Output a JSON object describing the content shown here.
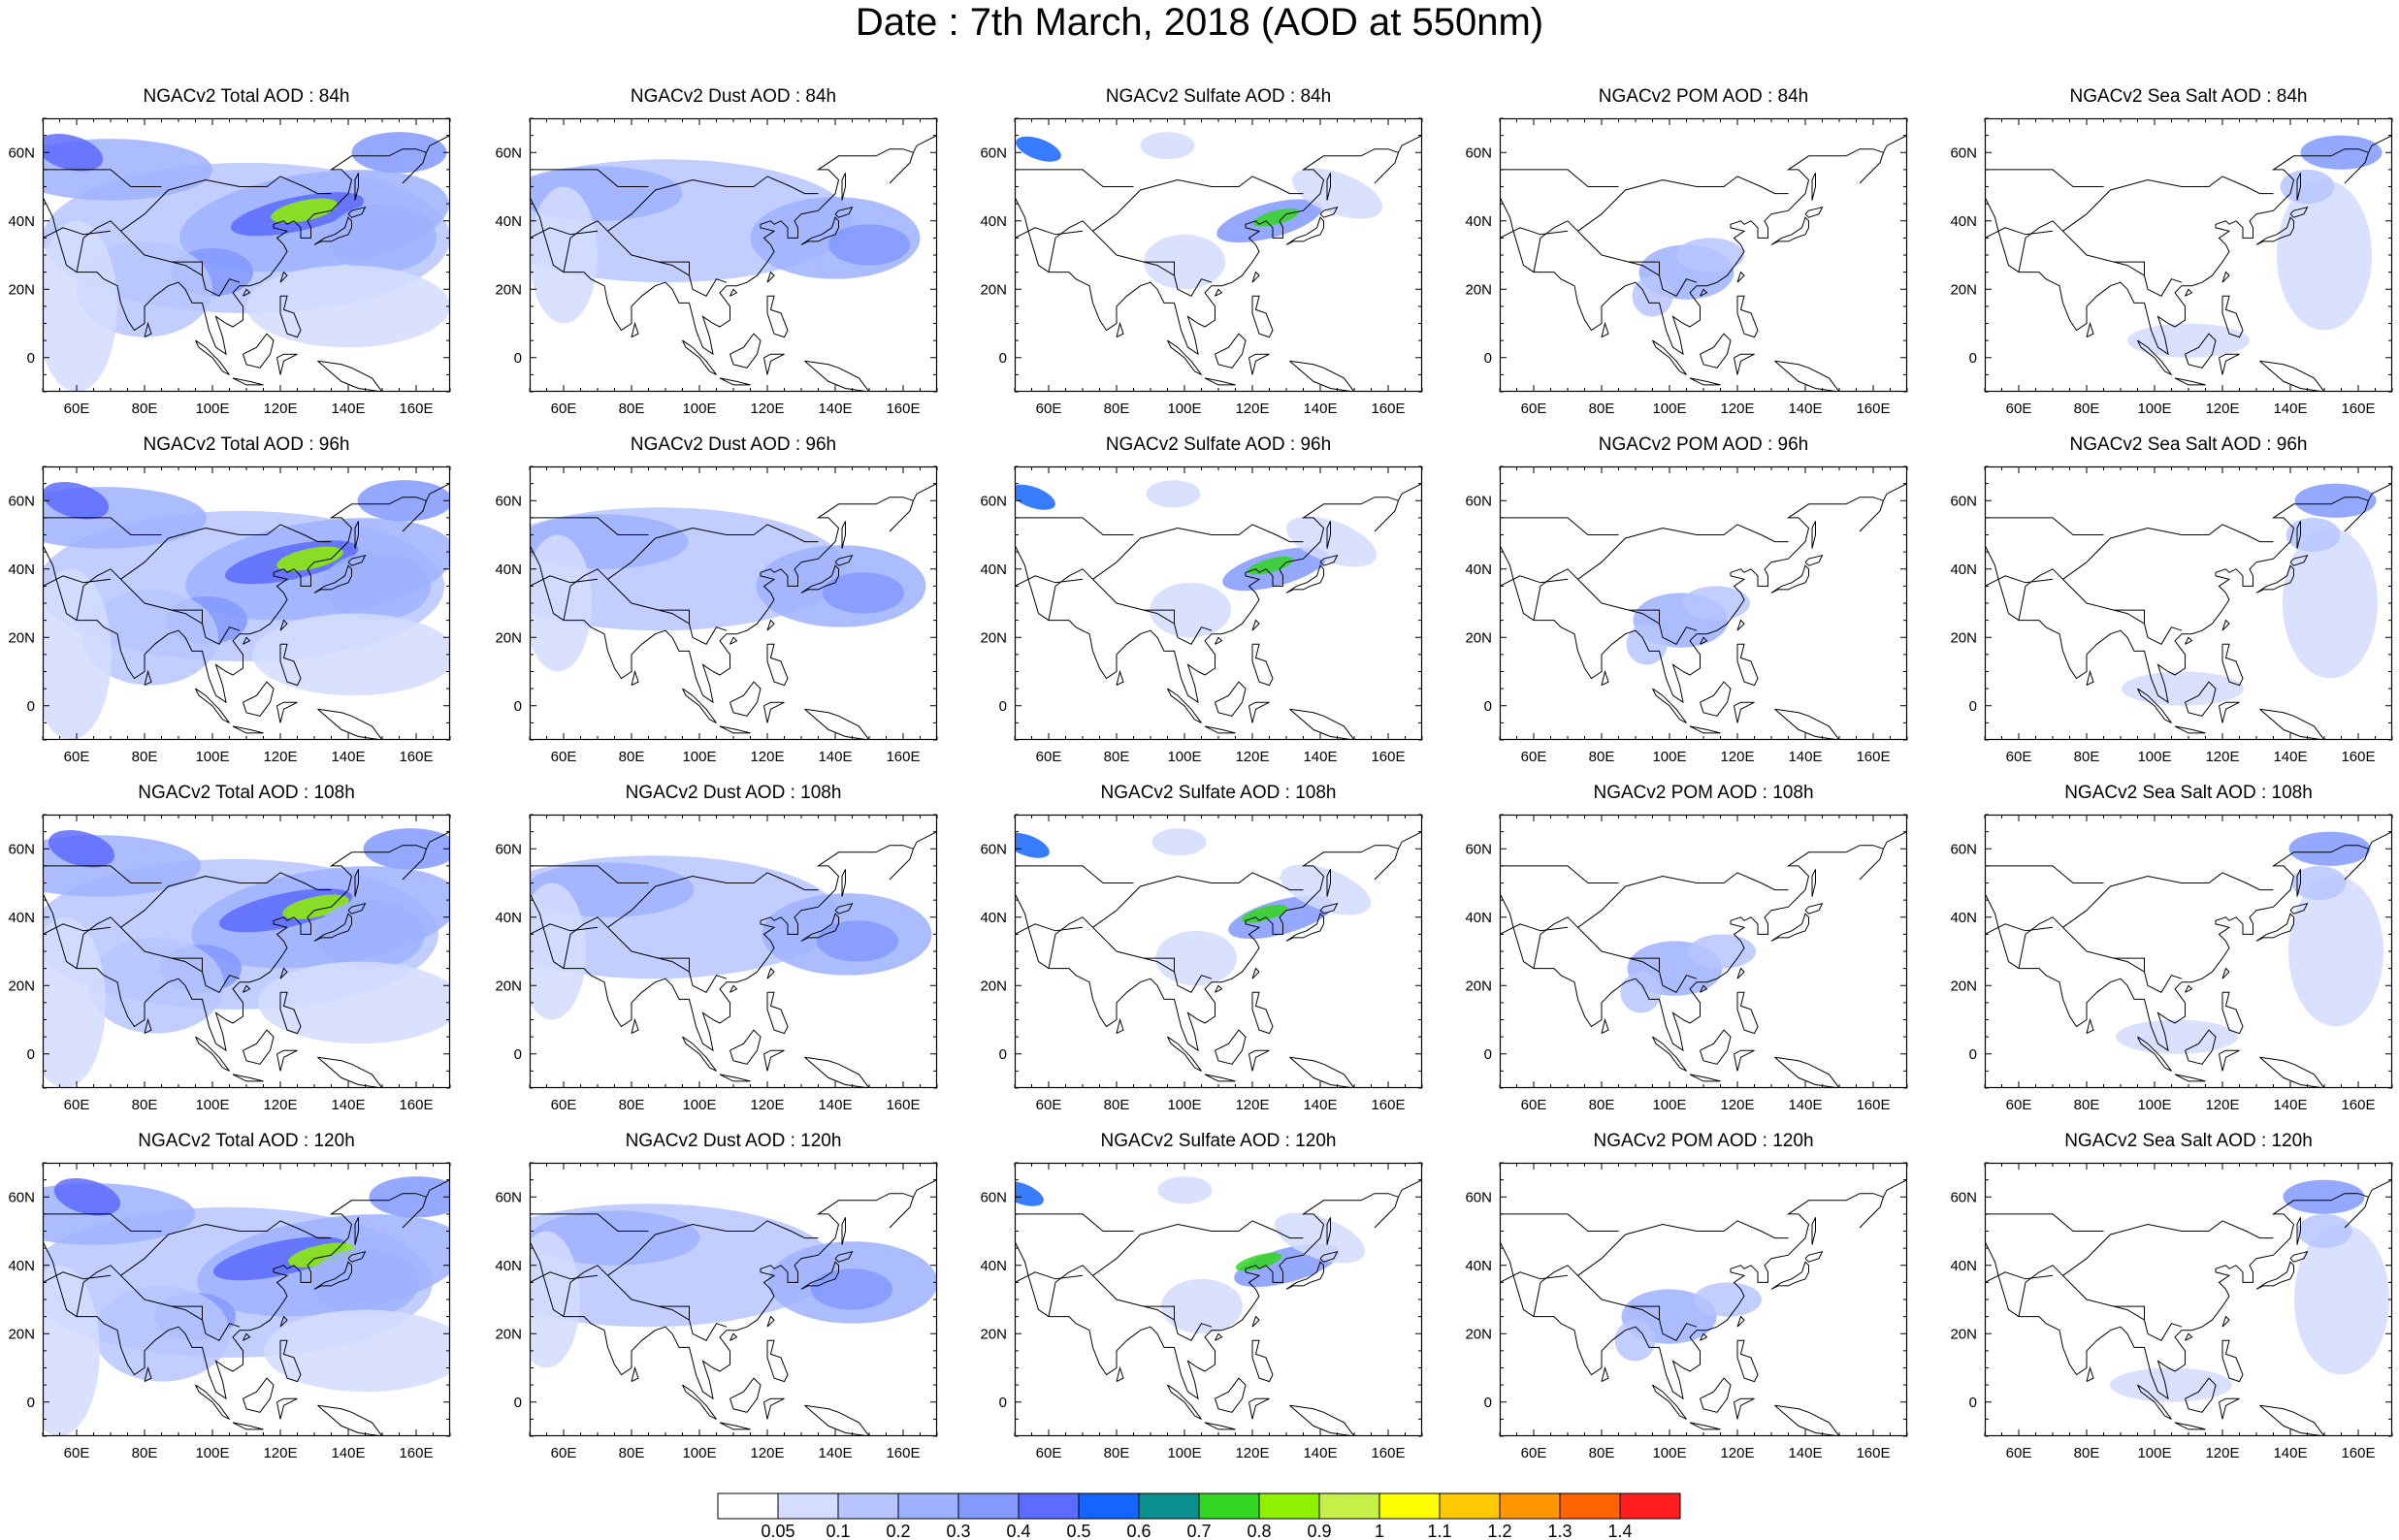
{
  "title": "Date : 7th March, 2018 (AOD at 550nm)",
  "rows": [
    {
      "lead": "84h",
      "panels": [
        {
          "title": "NGACv2 Total AOD : 84h",
          "species": "total"
        },
        {
          "title": "NGACv2 Dust AOD : 84h",
          "species": "dust"
        },
        {
          "title": "NGACv2 Sulfate AOD : 84h",
          "species": "sulfate"
        },
        {
          "title": "NGACv2 POM AOD : 84h",
          "species": "pom"
        },
        {
          "title": "NGACv2 Sea Salt AOD : 84h",
          "species": "seasalt"
        }
      ]
    },
    {
      "lead": "96h",
      "panels": [
        {
          "title": "NGACv2 Total AOD : 96h",
          "species": "total"
        },
        {
          "title": "NGACv2 Dust AOD : 96h",
          "species": "dust"
        },
        {
          "title": "NGACv2 Sulfate AOD : 96h",
          "species": "sulfate"
        },
        {
          "title": "NGACv2 POM AOD : 96h",
          "species": "pom"
        },
        {
          "title": "NGACv2 Sea Salt AOD : 96h",
          "species": "seasalt"
        }
      ]
    },
    {
      "lead": "108h",
      "panels": [
        {
          "title": "NGACv2 Total AOD : 108h",
          "species": "total"
        },
        {
          "title": "NGACv2 Dust AOD : 108h",
          "species": "dust"
        },
        {
          "title": "NGACv2 Sulfate AOD : 108h",
          "species": "sulfate"
        },
        {
          "title": "NGACv2 POM AOD : 108h",
          "species": "pom"
        },
        {
          "title": "NGACv2 Sea Salt AOD : 108h",
          "species": "seasalt"
        }
      ]
    },
    {
      "lead": "120h",
      "panels": [
        {
          "title": "NGACv2 Total AOD : 120h",
          "species": "total"
        },
        {
          "title": "NGACv2 Dust AOD : 120h",
          "species": "dust"
        },
        {
          "title": "NGACv2 Sulfate AOD : 120h",
          "species": "sulfate"
        },
        {
          "title": "NGACv2 POM AOD : 120h",
          "species": "pom"
        },
        {
          "title": "NGACv2 Sea Salt  AOD : 120h",
          "species": "seasalt"
        }
      ]
    }
  ],
  "axes": {
    "lon_labels": [
      "60E",
      "80E",
      "100E",
      "120E",
      "140E",
      "160E"
    ],
    "lon_values": [
      60,
      80,
      100,
      120,
      140,
      160
    ],
    "lat_labels": [
      "60N",
      "40N",
      "20N",
      "0"
    ],
    "lat_values": [
      60,
      40,
      20,
      0
    ],
    "lon_range": [
      50,
      170
    ],
    "lat_range": [
      -10,
      70
    ]
  },
  "colorbar": {
    "labels": [
      "0.05",
      "0.1",
      "0.2",
      "0.3",
      "0.4",
      "0.5",
      "0.6",
      "0.7",
      "0.8",
      "0.9",
      "1",
      "1.1",
      "1.2",
      "1.3",
      "1.4"
    ],
    "colors": [
      "#ffffff",
      "#d4dcff",
      "#b6c5ff",
      "#9eb1ff",
      "#8399ff",
      "#5d6bff",
      "#1464ff",
      "#0c8f8f",
      "#33d620",
      "#8ff000",
      "#c6f048",
      "#ffff00",
      "#ffc800",
      "#ff9600",
      "#ff6400",
      "#ff1e1e"
    ]
  }
}
